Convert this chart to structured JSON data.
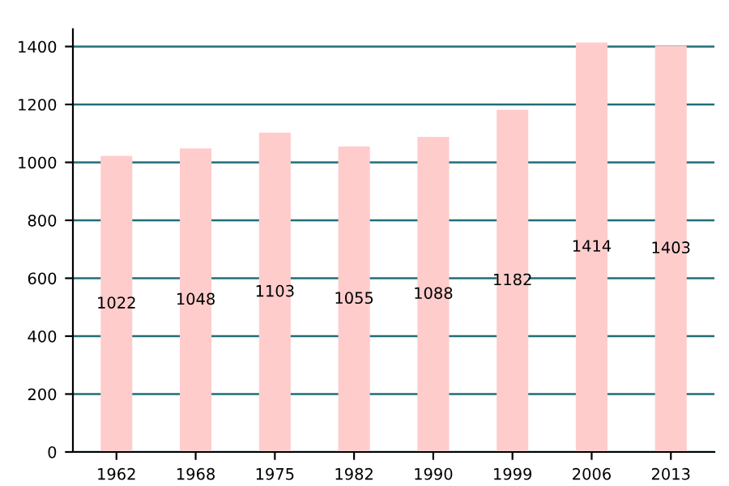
{
  "chart_data": {
    "type": "bar",
    "categories": [
      "1962",
      "1968",
      "1975",
      "1982",
      "1990",
      "1999",
      "2006",
      "2013"
    ],
    "values": [
      1022,
      1048,
      1103,
      1055,
      1088,
      1182,
      1414,
      1403
    ],
    "color": "#ffcccc",
    "ylim": [
      0,
      1460
    ],
    "yticks": [
      0,
      200,
      400,
      600,
      800,
      1000,
      1200,
      1400
    ],
    "grid": "y",
    "data_labels": true
  }
}
